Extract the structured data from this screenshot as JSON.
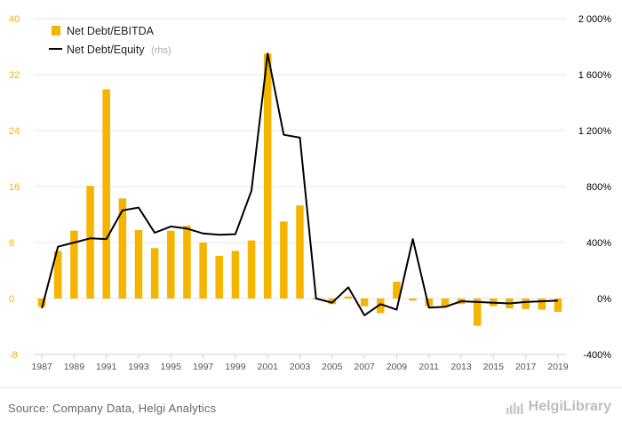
{
  "chart_data": {
    "type": "bar",
    "x": [
      1987,
      1988,
      1989,
      1990,
      1991,
      1992,
      1993,
      1994,
      1995,
      1996,
      1997,
      1998,
      1999,
      2000,
      2001,
      2002,
      2003,
      2004,
      2005,
      2006,
      2007,
      2008,
      2009,
      2010,
      2011,
      2012,
      2013,
      2014,
      2015,
      2016,
      2017,
      2018,
      2019
    ],
    "x_tick_labels": [
      "1987",
      "1989",
      "1991",
      "1993",
      "1995",
      "1997",
      "1999",
      "2001",
      "2003",
      "2005",
      "2007",
      "2009",
      "2011",
      "2013",
      "2015",
      "2017",
      "2019"
    ],
    "series": [
      {
        "name": "Net Debt/EBITDA",
        "type": "bar",
        "axis": "left",
        "color": "#f5b400",
        "values": [
          -1.2,
          6.8,
          9.7,
          16.1,
          29.9,
          14.3,
          9.8,
          7.2,
          9.7,
          10.4,
          8.0,
          6.1,
          6.8,
          8.3,
          35.0,
          11.0,
          13.3,
          -0.1,
          -0.8,
          0.3,
          -1.1,
          -2.1,
          2.4,
          -0.3,
          -1.1,
          -1.2,
          -0.8,
          -3.9,
          -1.1,
          -1.4,
          -1.5,
          -1.6,
          -1.9
        ]
      },
      {
        "name": "Net Debt/Equity",
        "name_suffix": "(rhs)",
        "type": "line",
        "axis": "right",
        "color": "#000000",
        "values": [
          -70,
          370,
          400,
          430,
          425,
          630,
          650,
          470,
          515,
          500,
          465,
          455,
          460,
          770,
          1750,
          1170,
          1150,
          0,
          -30,
          80,
          -120,
          -40,
          -80,
          425,
          -65,
          -60,
          -20,
          -25,
          -30,
          -35,
          -25,
          -20,
          -15
        ]
      }
    ],
    "y_left": {
      "min": -8,
      "max": 40,
      "ticks": [
        "-8",
        "0",
        "8",
        "16",
        "24",
        "32",
        "40"
      ]
    },
    "y_right": {
      "min": -400,
      "max": 2000,
      "ticks": [
        "-400%",
        "0%",
        "400%",
        "800%",
        "1 200%",
        "1 600%",
        "2 000%"
      ]
    },
    "legend_position": "top-left",
    "grid": true
  },
  "legend": {
    "bar_label": "Net Debt/EBITDA",
    "line_label": "Net Debt/Equity",
    "line_suffix": "(rhs)"
  },
  "footer": {
    "source": "Source: Company Data, Helgi Analytics",
    "brand": "HelgiLibrary"
  },
  "colors": {
    "bar": "#f5b400",
    "line": "#000000",
    "left_axis_text": "#f5b400",
    "right_axis_text": "#000000",
    "grid": "#e6e6e6"
  }
}
